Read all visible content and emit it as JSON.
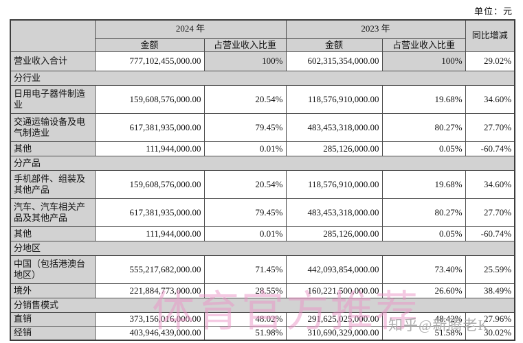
{
  "unit_label": "单位：元",
  "colors": {
    "header_bg": "#d2d2d2",
    "border": "#4d4d4d",
    "watermark_pink": "#e994c6",
    "watermark_gray": "#7d7d7d"
  },
  "table": {
    "header": {
      "y2024": "2024 年",
      "y2023": "2023 年",
      "amount": "金额",
      "pct_share": "占营业收入比重",
      "yoy": "同比增减"
    },
    "rows": [
      {
        "type": "data",
        "label": "营业收入合计",
        "a2024": "777,102,455,000.00",
        "p2024": "100%",
        "a2023": "602,315,354,000.00",
        "p2023": "100%",
        "yoy": "29.02%",
        "gray_pct": true,
        "h": 28
      },
      {
        "type": "section",
        "label": "分行业",
        "h": 21
      },
      {
        "type": "data",
        "label": "日用电子器件制造业",
        "a2024": "159,608,576,000.00",
        "p2024": "20.54%",
        "a2023": "118,576,910,000.00",
        "p2023": "19.68%",
        "yoy": "34.60%",
        "h": 41
      },
      {
        "type": "data",
        "label": "交通运输设备及电气制造业",
        "a2024": "617,381,935,000.00",
        "p2024": "79.45%",
        "a2023": "483,453,318,000.00",
        "p2023": "80.27%",
        "yoy": "27.70%",
        "h": 41
      },
      {
        "type": "data",
        "label": "其他",
        "a2024": "111,944,000.00",
        "p2024": "0.01%",
        "a2023": "285,126,000.00",
        "p2023": "0.05%",
        "yoy": "-60.74%",
        "h": 21
      },
      {
        "type": "section",
        "label": "分产品",
        "h": 21
      },
      {
        "type": "data",
        "label": "手机部件、组装及其他产品",
        "a2024": "159,608,576,000.00",
        "p2024": "20.54%",
        "a2023": "118,576,910,000.00",
        "p2023": "19.68%",
        "yoy": "34.60%",
        "h": 41
      },
      {
        "type": "data",
        "label": "汽车、汽车相关产品及其他产品",
        "a2024": "617,381,935,000.00",
        "p2024": "79.45%",
        "a2023": "483,453,318,000.00",
        "p2023": "80.27%",
        "yoy": "27.70%",
        "h": 41
      },
      {
        "type": "data",
        "label": "其他",
        "a2024": "111,944,000.00",
        "p2024": "0.01%",
        "a2023": "285,126,000.00",
        "p2023": "0.05%",
        "yoy": "-60.74%",
        "h": 21
      },
      {
        "type": "section",
        "label": "分地区",
        "h": 21
      },
      {
        "type": "data",
        "label": "中国（包括港澳台地区）",
        "a2024": "555,217,682,000.00",
        "p2024": "71.45%",
        "a2023": "442,093,854,000.00",
        "p2023": "73.40%",
        "yoy": "25.59%",
        "h": 41
      },
      {
        "type": "data",
        "label": "境外",
        "a2024": "221,884,773,000.00",
        "p2024": "28.55%",
        "a2023": "160,221,500,000.00",
        "p2023": "26.60%",
        "yoy": "38.49%",
        "h": 21
      },
      {
        "type": "section",
        "label": "分销售模式",
        "h": 21
      },
      {
        "type": "data",
        "label": "直销",
        "a2024": "373,156,016,000.00",
        "p2024": "48.02%",
        "a2023": "291,625,025,000.00",
        "p2023": "48.42%",
        "yoy": "27.96%",
        "h": 19
      },
      {
        "type": "data",
        "label": "经销",
        "a2024": "403,946,439,000.00",
        "p2024": "51.98%",
        "a2023": "310,690,329,000.00",
        "p2023": "51.58%",
        "yoy": "30.02%",
        "h": 19
      }
    ]
  },
  "watermarks": {
    "center": "体育官方推荐",
    "zhihu": "知乎@新腾老K"
  }
}
